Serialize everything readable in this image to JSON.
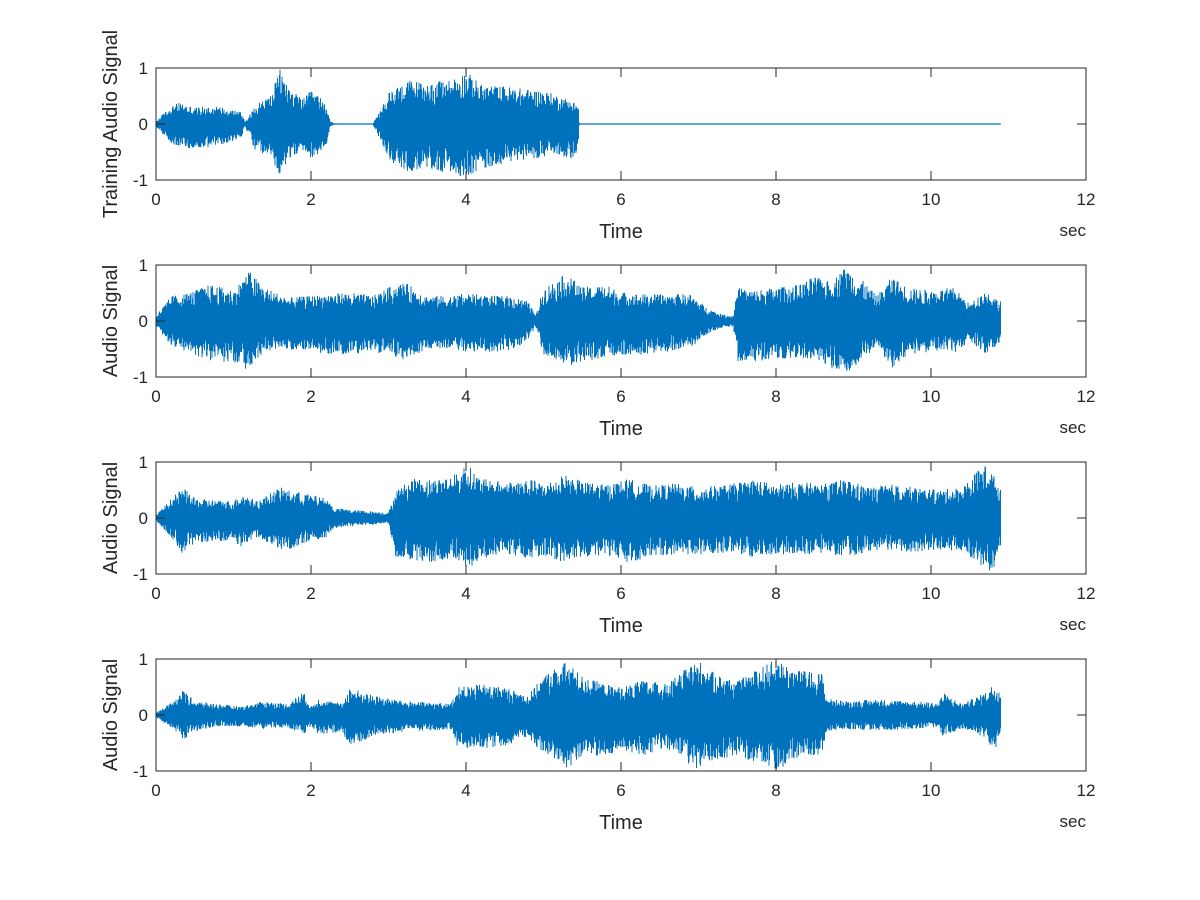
{
  "figure": {
    "background": "#ffffff",
    "axis_color": "#262626",
    "signal_color": "#0072bd"
  },
  "chart_data": [
    {
      "type": "line",
      "ylabel": "Training Audio Signal",
      "xlabel": "Time",
      "x_unit": "sec",
      "xlim": [
        0,
        12
      ],
      "ylim": [
        -1,
        1
      ],
      "xticks": [
        0,
        2,
        4,
        6,
        8,
        10,
        12
      ],
      "yticks": [
        -1,
        0,
        1
      ],
      "grid": false,
      "signal_end": 10.9,
      "envelope": {
        "t": [
          0,
          0.1,
          0.2,
          0.3,
          0.5,
          0.7,
          0.9,
          1.1,
          1.15,
          1.2,
          1.3,
          1.4,
          1.5,
          1.55,
          1.6,
          1.65,
          1.7,
          1.8,
          1.9,
          2.0,
          2.1,
          2.2,
          2.25,
          2.3,
          2.8,
          2.9,
          3.0,
          3.1,
          3.3,
          3.5,
          3.8,
          4.0,
          4.2,
          4.5,
          4.8,
          5.0,
          5.2,
          5.4,
          5.45,
          5.46,
          10.9
        ],
        "upper": [
          0.05,
          0.2,
          0.32,
          0.38,
          0.3,
          0.32,
          0.3,
          0.22,
          0.05,
          0.15,
          0.35,
          0.45,
          0.55,
          0.8,
          0.98,
          0.85,
          0.7,
          0.55,
          0.45,
          0.6,
          0.5,
          0.35,
          0.05,
          0.01,
          0.01,
          0.25,
          0.55,
          0.68,
          0.8,
          0.72,
          0.8,
          0.95,
          0.7,
          0.68,
          0.62,
          0.6,
          0.5,
          0.4,
          0.35,
          0.0,
          0.0
        ],
        "lower": [
          -0.05,
          -0.2,
          -0.35,
          -0.4,
          -0.45,
          -0.42,
          -0.35,
          -0.25,
          -0.05,
          -0.2,
          -0.55,
          -0.55,
          -0.6,
          -0.85,
          -0.92,
          -0.8,
          -0.65,
          -0.55,
          -0.5,
          -0.6,
          -0.55,
          -0.35,
          -0.05,
          -0.01,
          -0.01,
          -0.3,
          -0.6,
          -0.8,
          -0.85,
          -0.82,
          -0.88,
          -0.95,
          -0.82,
          -0.7,
          -0.62,
          -0.6,
          -0.55,
          -0.65,
          -0.35,
          0.0,
          0.0
        ]
      }
    },
    {
      "type": "line",
      "ylabel": "Audio Signal",
      "xlabel": "Time",
      "x_unit": "sec",
      "xlim": [
        0,
        12
      ],
      "ylim": [
        -1,
        1
      ],
      "xticks": [
        0,
        2,
        4,
        6,
        8,
        10,
        12
      ],
      "yticks": [
        -1,
        0,
        1
      ],
      "grid": false,
      "signal_end": 10.9,
      "envelope": {
        "t": [
          0,
          0.2,
          0.4,
          0.7,
          1.0,
          1.2,
          1.4,
          1.7,
          2.0,
          2.3,
          2.6,
          2.8,
          3.0,
          3.2,
          3.5,
          3.8,
          4.0,
          4.3,
          4.6,
          4.8,
          4.9,
          5.0,
          5.3,
          5.5,
          5.8,
          6.0,
          6.3,
          6.6,
          6.9,
          7.1,
          7.3,
          7.45,
          7.5,
          7.7,
          8.0,
          8.3,
          8.5,
          8.7,
          8.9,
          9.1,
          9.3,
          9.5,
          9.7,
          10.0,
          10.3,
          10.5,
          10.7,
          10.9
        ],
        "upper": [
          0.1,
          0.45,
          0.5,
          0.65,
          0.55,
          0.9,
          0.6,
          0.42,
          0.45,
          0.5,
          0.5,
          0.45,
          0.6,
          0.7,
          0.45,
          0.45,
          0.5,
          0.45,
          0.45,
          0.35,
          0.1,
          0.6,
          0.85,
          0.6,
          0.65,
          0.52,
          0.48,
          0.48,
          0.48,
          0.25,
          0.12,
          0.1,
          0.6,
          0.55,
          0.6,
          0.65,
          0.8,
          0.7,
          0.98,
          0.75,
          0.45,
          0.8,
          0.6,
          0.55,
          0.6,
          0.3,
          0.55,
          0.35
        ],
        "lower": [
          -0.1,
          -0.45,
          -0.55,
          -0.72,
          -0.75,
          -0.88,
          -0.55,
          -0.5,
          -0.55,
          -0.6,
          -0.58,
          -0.55,
          -0.62,
          -0.7,
          -0.5,
          -0.48,
          -0.55,
          -0.55,
          -0.52,
          -0.35,
          -0.1,
          -0.6,
          -0.82,
          -0.72,
          -0.68,
          -0.6,
          -0.6,
          -0.55,
          -0.48,
          -0.25,
          -0.12,
          -0.1,
          -0.72,
          -0.72,
          -0.7,
          -0.68,
          -0.72,
          -0.85,
          -0.98,
          -0.72,
          -0.45,
          -0.85,
          -0.6,
          -0.55,
          -0.58,
          -0.35,
          -0.6,
          -0.4
        ]
      }
    },
    {
      "type": "line",
      "ylabel": "Audio Signal",
      "xlabel": "Time",
      "x_unit": "sec",
      "xlim": [
        0,
        12
      ],
      "ylim": [
        -1,
        1
      ],
      "xticks": [
        0,
        2,
        4,
        6,
        8,
        10,
        12
      ],
      "yticks": [
        -1,
        0,
        1
      ],
      "grid": false,
      "signal_end": 10.9,
      "envelope": {
        "t": [
          0,
          0.2,
          0.35,
          0.5,
          0.8,
          1.0,
          1.1,
          1.3,
          1.6,
          1.7,
          1.9,
          2.2,
          2.3,
          2.5,
          2.8,
          3.0,
          3.1,
          3.3,
          3.6,
          3.9,
          4.0,
          4.2,
          4.5,
          4.8,
          5.0,
          5.3,
          5.5,
          5.8,
          6.1,
          6.4,
          6.7,
          7.0,
          7.4,
          7.7,
          8.0,
          8.3,
          8.6,
          8.9,
          9.2,
          9.5,
          9.8,
          10.1,
          10.4,
          10.6,
          10.7,
          10.8,
          10.9
        ],
        "upper": [
          0.05,
          0.35,
          0.55,
          0.35,
          0.32,
          0.3,
          0.45,
          0.3,
          0.55,
          0.5,
          0.45,
          0.35,
          0.18,
          0.15,
          0.12,
          0.1,
          0.5,
          0.7,
          0.7,
          0.8,
          0.98,
          0.7,
          0.65,
          0.7,
          0.62,
          0.78,
          0.65,
          0.6,
          0.7,
          0.58,
          0.62,
          0.55,
          0.6,
          0.7,
          0.6,
          0.65,
          0.6,
          0.7,
          0.55,
          0.6,
          0.55,
          0.5,
          0.55,
          0.85,
          0.95,
          0.8,
          0.5
        ],
        "lower": [
          -0.05,
          -0.35,
          -0.65,
          -0.45,
          -0.42,
          -0.4,
          -0.55,
          -0.35,
          -0.55,
          -0.58,
          -0.45,
          -0.35,
          -0.18,
          -0.15,
          -0.12,
          -0.1,
          -0.75,
          -0.75,
          -0.82,
          -0.75,
          -0.95,
          -0.72,
          -0.65,
          -0.72,
          -0.68,
          -0.8,
          -0.72,
          -0.65,
          -0.8,
          -0.68,
          -0.65,
          -0.65,
          -0.62,
          -0.72,
          -0.65,
          -0.68,
          -0.62,
          -0.7,
          -0.6,
          -0.62,
          -0.6,
          -0.58,
          -0.58,
          -0.8,
          -0.9,
          -0.98,
          -0.5
        ]
      }
    },
    {
      "type": "line",
      "ylabel": "Audio Signal",
      "xlabel": "Time",
      "x_unit": "sec",
      "xlim": [
        0,
        12
      ],
      "ylim": [
        -1,
        1
      ],
      "xticks": [
        0,
        2,
        4,
        6,
        8,
        10,
        12
      ],
      "yticks": [
        -1,
        0,
        1
      ],
      "grid": false,
      "signal_end": 10.9,
      "envelope": {
        "t": [
          0,
          0.2,
          0.35,
          0.5,
          0.8,
          1.1,
          1.4,
          1.7,
          1.9,
          2.0,
          2.1,
          2.4,
          2.5,
          2.8,
          3.2,
          3.6,
          3.8,
          3.9,
          4.2,
          4.5,
          4.8,
          5.0,
          5.2,
          5.3,
          5.5,
          5.8,
          6.0,
          6.3,
          6.6,
          6.9,
          7.0,
          7.2,
          7.5,
          7.8,
          8.0,
          8.3,
          8.6,
          8.65,
          8.9,
          9.3,
          9.7,
          10.1,
          10.15,
          10.4,
          10.7,
          10.8,
          10.9
        ],
        "upper": [
          0.05,
          0.22,
          0.45,
          0.25,
          0.2,
          0.15,
          0.25,
          0.2,
          0.42,
          0.15,
          0.3,
          0.2,
          0.5,
          0.35,
          0.25,
          0.22,
          0.2,
          0.5,
          0.55,
          0.5,
          0.35,
          0.7,
          0.9,
          0.95,
          0.7,
          0.55,
          0.5,
          0.62,
          0.55,
          0.9,
          0.98,
          0.75,
          0.6,
          0.85,
          1.0,
          0.8,
          0.75,
          0.3,
          0.25,
          0.28,
          0.25,
          0.22,
          0.4,
          0.2,
          0.4,
          0.55,
          0.45
        ],
        "lower": [
          -0.05,
          -0.22,
          -0.45,
          -0.3,
          -0.2,
          -0.2,
          -0.25,
          -0.22,
          -0.35,
          -0.2,
          -0.35,
          -0.3,
          -0.55,
          -0.4,
          -0.3,
          -0.28,
          -0.25,
          -0.6,
          -0.6,
          -0.55,
          -0.4,
          -0.7,
          -0.85,
          -0.95,
          -0.75,
          -0.72,
          -0.65,
          -0.72,
          -0.6,
          -0.92,
          -0.98,
          -0.8,
          -0.75,
          -0.9,
          -0.98,
          -0.8,
          -0.7,
          -0.3,
          -0.25,
          -0.28,
          -0.25,
          -0.22,
          -0.38,
          -0.25,
          -0.4,
          -0.65,
          -0.5
        ]
      }
    }
  ]
}
